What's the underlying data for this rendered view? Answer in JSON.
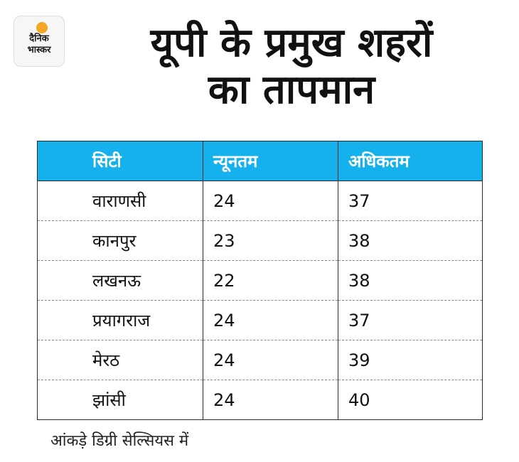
{
  "logo": {
    "line1": "दैनिक",
    "line2": "भास्कर"
  },
  "title": {
    "line1": "यूपी के प्रमुख शहरों",
    "line2": "का तापमान"
  },
  "table": {
    "headers": [
      "सिटी",
      "न्यूनतम",
      "अधिकतम"
    ],
    "rows": [
      [
        "वाराणसी",
        "24",
        "37"
      ],
      [
        "कानपुर",
        "23",
        "38"
      ],
      [
        "लखनऊ",
        "22",
        "38"
      ],
      [
        "प्रयागराज",
        "24",
        "37"
      ],
      [
        "मेरठ",
        "24",
        "39"
      ],
      [
        "झांसी",
        "24",
        "40"
      ]
    ]
  },
  "note": "आंकड़े डिग्री सेल्सियस में",
  "colors": {
    "header_bg": "#14b1ec",
    "logo_sun": "#f5a623"
  }
}
